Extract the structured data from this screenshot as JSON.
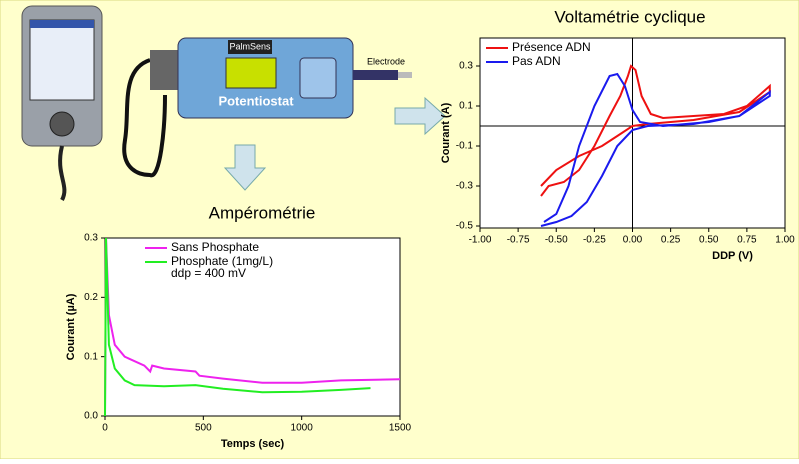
{
  "labels": {
    "device": "PalmSens",
    "potentiostat": "Potentiostat",
    "electrode": "Electrode"
  },
  "chart_data": [
    {
      "type": "line",
      "title": "Voltamétrie cyclique",
      "xlabel": "DDP (V)",
      "ylabel": "Courant (A)",
      "xlim": [
        -1,
        1
      ],
      "ylim": [
        -0.51,
        0.44
      ],
      "zero_lines": true,
      "legend": "upper left",
      "xticks": [
        {
          "value": -1,
          "label": "-1.00"
        },
        -0.75,
        {
          "value": -0.5,
          "label": "-0.50"
        },
        -0.25,
        {
          "value": 0,
          "label": "0.00"
        },
        0.25,
        {
          "value": 0.5,
          "label": "0.50"
        },
        0.75,
        {
          "value": 1,
          "label": "1.00"
        }
      ],
      "yticks": [
        0.3,
        0.1,
        -0.1,
        -0.3,
        -0.5
      ],
      "series": [
        {
          "name": "Présence ADN",
          "color": "#ee1111",
          "x": [
            -0.6,
            -0.55,
            -0.45,
            -0.35,
            -0.25,
            -0.15,
            -0.08,
            -0.03,
            -0.01,
            0.02,
            0.06,
            0.12,
            0.2,
            0.4,
            0.6,
            0.75,
            0.9,
            0.9,
            0.7,
            0.4,
            0.1,
            0,
            -0.1,
            -0.2,
            -0.35,
            -0.5,
            -0.6
          ],
          "values": [
            -0.35,
            -0.3,
            -0.28,
            -0.22,
            -0.1,
            0.05,
            0.15,
            0.25,
            0.3,
            0.28,
            0.15,
            0.06,
            0.04,
            0.05,
            0.06,
            0.1,
            0.2,
            0.17,
            0.07,
            0.03,
            0.01,
            0,
            -0.05,
            -0.1,
            -0.15,
            -0.22,
            -0.3
          ]
        },
        {
          "name": "Pas ADN",
          "color": "#1a1aee",
          "x": [
            -0.58,
            -0.5,
            -0.42,
            -0.35,
            -0.25,
            -0.15,
            -0.1,
            -0.05,
            0,
            0.05,
            0.2,
            0.5,
            0.7,
            0.9,
            0.9,
            0.7,
            0.4,
            0.1,
            0,
            -0.1,
            -0.2,
            -0.3,
            -0.4,
            -0.5,
            -0.6
          ],
          "values": [
            -0.48,
            -0.44,
            -0.3,
            -0.1,
            0.1,
            0.25,
            0.26,
            0.2,
            0.08,
            0.02,
            0,
            0.02,
            0.05,
            0.17,
            0.15,
            0.05,
            0.01,
            0,
            -0.02,
            -0.1,
            -0.25,
            -0.38,
            -0.45,
            -0.48,
            -0.5
          ]
        }
      ]
    },
    {
      "type": "line",
      "title": "Ampérométrie",
      "xlabel": "Temps (sec)",
      "ylabel": "Courant (µA)",
      "xlim": [
        0,
        1500
      ],
      "ylim": [
        0,
        0.3
      ],
      "zero_lines": false,
      "legend": "upper left",
      "annotation": "ddp = 400 mV",
      "xticks": [
        0,
        500,
        1000,
        1500
      ],
      "yticks": [
        {
          "value": 0,
          "label": "0.0"
        },
        0.1,
        0.2,
        0.3
      ],
      "series": [
        {
          "name": "Sans Phosphate",
          "color": "#ee22ee",
          "x": [
            0,
            5,
            20,
            50,
            100,
            200,
            230,
            240,
            300,
            460,
            480,
            600,
            800,
            1000,
            1200,
            1500
          ],
          "values": [
            0,
            0.3,
            0.17,
            0.12,
            0.1,
            0.085,
            0.075,
            0.085,
            0.08,
            0.075,
            0.068,
            0.063,
            0.056,
            0.056,
            0.06,
            0.062
          ]
        },
        {
          "name": "Phosphate (1mg/L)",
          "color": "#22ee22",
          "x": [
            0,
            5,
            20,
            50,
            100,
            150,
            300,
            460,
            600,
            800,
            1000,
            1200,
            1350
          ],
          "values": [
            0,
            0.3,
            0.12,
            0.08,
            0.06,
            0.052,
            0.05,
            0.052,
            0.046,
            0.04,
            0.041,
            0.044,
            0.047
          ]
        }
      ]
    }
  ]
}
